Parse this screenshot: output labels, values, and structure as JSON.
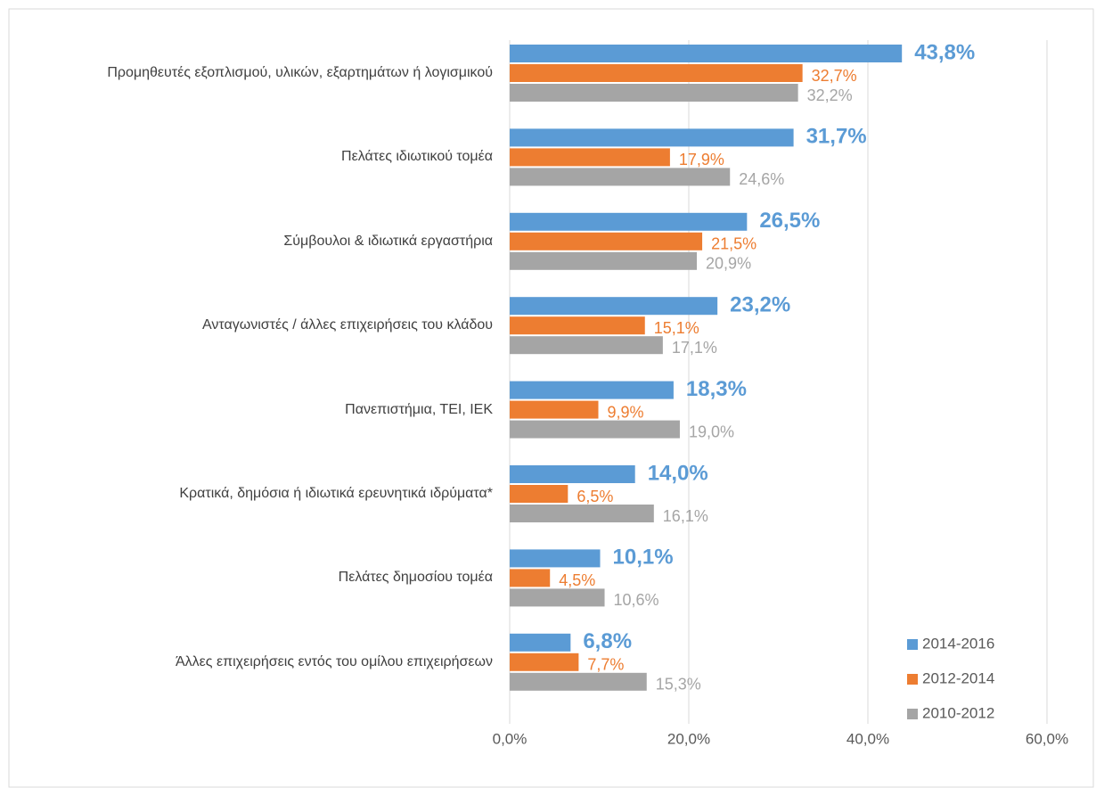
{
  "chart_data": {
    "type": "bar",
    "orientation": "horizontal",
    "categories": [
      "Προμηθευτές εξοπλισμού, υλικών, εξαρτημάτων ή λογισμικού",
      "Πελάτες ιδιωτικού τομέα",
      "Σύμβουλοι & ιδιωτικά εργαστήρια",
      "Ανταγωνιστές / άλλες επιχειρήσεις του κλάδου",
      "Πανεπιστήμια, ΤΕΙ, ΙΕΚ",
      "Κρατικά, δημόσια ή ιδιωτικά ερευνητικά ιδρύματα*",
      "Πελάτες δημοσίου τομέα",
      "Άλλες επιχειρήσεις εντός του ομίλου επιχειρήσεων"
    ],
    "series": [
      {
        "name": "2014-2016",
        "color": "#5b9bd5",
        "values": [
          43.8,
          31.7,
          26.5,
          23.2,
          18.3,
          14.0,
          10.1,
          6.8
        ],
        "value_labels": [
          "43,8%",
          "31,7%",
          "26,5%",
          "23,2%",
          "18,3%",
          "14,0%",
          "10,1%",
          "6,8%"
        ]
      },
      {
        "name": "2012-2014",
        "color": "#ed7d31",
        "values": [
          32.7,
          17.9,
          21.5,
          15.1,
          9.9,
          6.5,
          4.5,
          7.7
        ],
        "value_labels": [
          "32,7%",
          "17,9%",
          "21,5%",
          "15,1%",
          "9,9%",
          "6,5%",
          "4,5%",
          "7,7%"
        ]
      },
      {
        "name": "2010-2012",
        "color": "#a5a5a5",
        "values": [
          32.2,
          24.6,
          20.9,
          17.1,
          19.0,
          16.1,
          10.6,
          15.3
        ],
        "value_labels": [
          "32,2%",
          "24,6%",
          "20,9%",
          "17,1%",
          "19,0%",
          "16,1%",
          "10,6%",
          "15,3%"
        ]
      }
    ],
    "xlim": [
      0,
      60
    ],
    "xticks": [
      {
        "value": 0,
        "label": "0,0%"
      },
      {
        "value": 20,
        "label": "20,0%"
      },
      {
        "value": 40,
        "label": "40,0%"
      },
      {
        "value": 60,
        "label": "60,0%"
      }
    ],
    "grid": true,
    "legend": "lower right"
  }
}
